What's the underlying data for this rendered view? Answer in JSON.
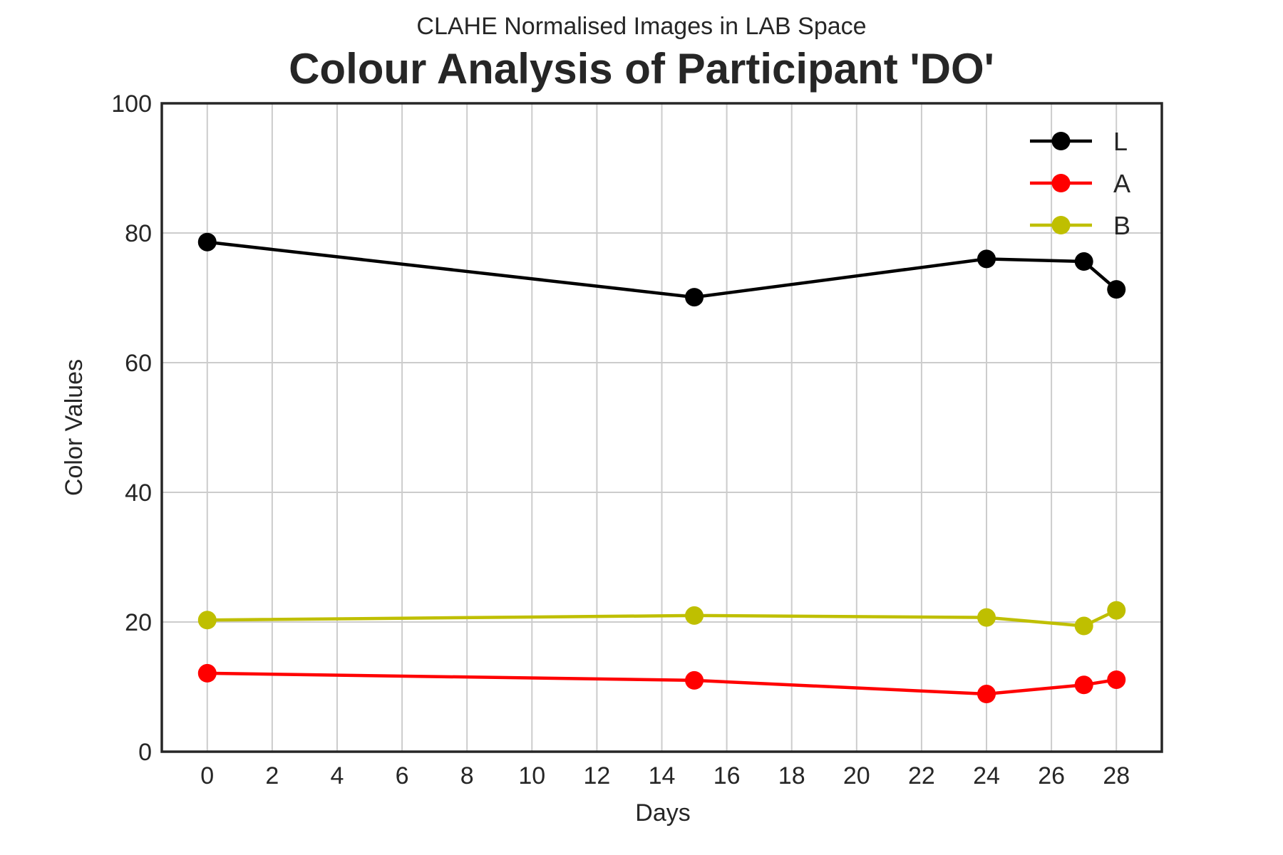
{
  "chart_data": {
    "type": "line",
    "title": "Colour Analysis of Participant 'DO'",
    "subtitle": "CLAHE Normalised Images in LAB Space",
    "xlabel": "Days",
    "ylabel": "Color Values",
    "xlim": [
      -1.4,
      29.4
    ],
    "ylim": [
      0,
      100
    ],
    "xticks": [
      0,
      2,
      4,
      6,
      8,
      10,
      12,
      14,
      16,
      18,
      20,
      22,
      24,
      26,
      28
    ],
    "yticks": [
      0,
      20,
      40,
      60,
      80,
      100
    ],
    "grid": true,
    "legend_position": "top-right",
    "x": [
      0,
      15,
      24,
      27,
      28
    ],
    "series": [
      {
        "name": "L",
        "color": "#000000",
        "values": [
          78.6,
          70.1,
          76.0,
          75.6,
          71.3
        ]
      },
      {
        "name": "A",
        "color": "#ff0000",
        "values": [
          12.1,
          11.0,
          8.9,
          10.3,
          11.1
        ]
      },
      {
        "name": "B",
        "color": "#bfbf00",
        "values": [
          20.3,
          21.0,
          20.7,
          19.4,
          21.8
        ]
      }
    ]
  }
}
